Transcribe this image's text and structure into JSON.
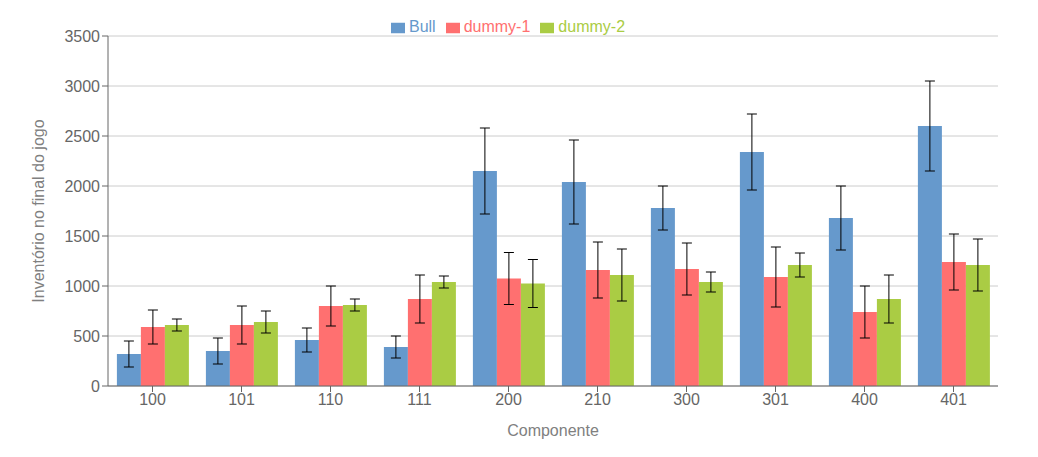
{
  "chart_data": {
    "type": "bar",
    "categories": [
      "100",
      "101",
      "110",
      "111",
      "200",
      "210",
      "300",
      "301",
      "400",
      "401"
    ],
    "series": [
      {
        "name": "Bull",
        "color": "#6699CC",
        "values": [
          320,
          350,
          460,
          390,
          2150,
          2040,
          1780,
          2340,
          1680,
          2600
        ],
        "errors": [
          130,
          130,
          120,
          110,
          430,
          420,
          220,
          380,
          320,
          450
        ]
      },
      {
        "name": "dummy-1",
        "color": "#FF7070",
        "values": [
          590,
          610,
          800,
          870,
          1075,
          1160,
          1170,
          1090,
          740,
          1240
        ],
        "errors": [
          170,
          190,
          200,
          240,
          260,
          280,
          260,
          300,
          260,
          280
        ]
      },
      {
        "name": "dummy-2",
        "color": "#AACC44",
        "values": [
          610,
          640,
          810,
          1040,
          1025,
          1110,
          1040,
          1210,
          870,
          1210
        ],
        "errors": [
          60,
          110,
          60,
          60,
          240,
          260,
          100,
          120,
          240,
          260
        ]
      }
    ],
    "xlabel": "Componente",
    "ylabel": "Inventório no final do jogo",
    "ylim": [
      0,
      3500
    ],
    "yticks": [
      0,
      500,
      1000,
      1500,
      2000,
      2500,
      3000,
      3500
    ],
    "grid": true,
    "legend": "top"
  }
}
